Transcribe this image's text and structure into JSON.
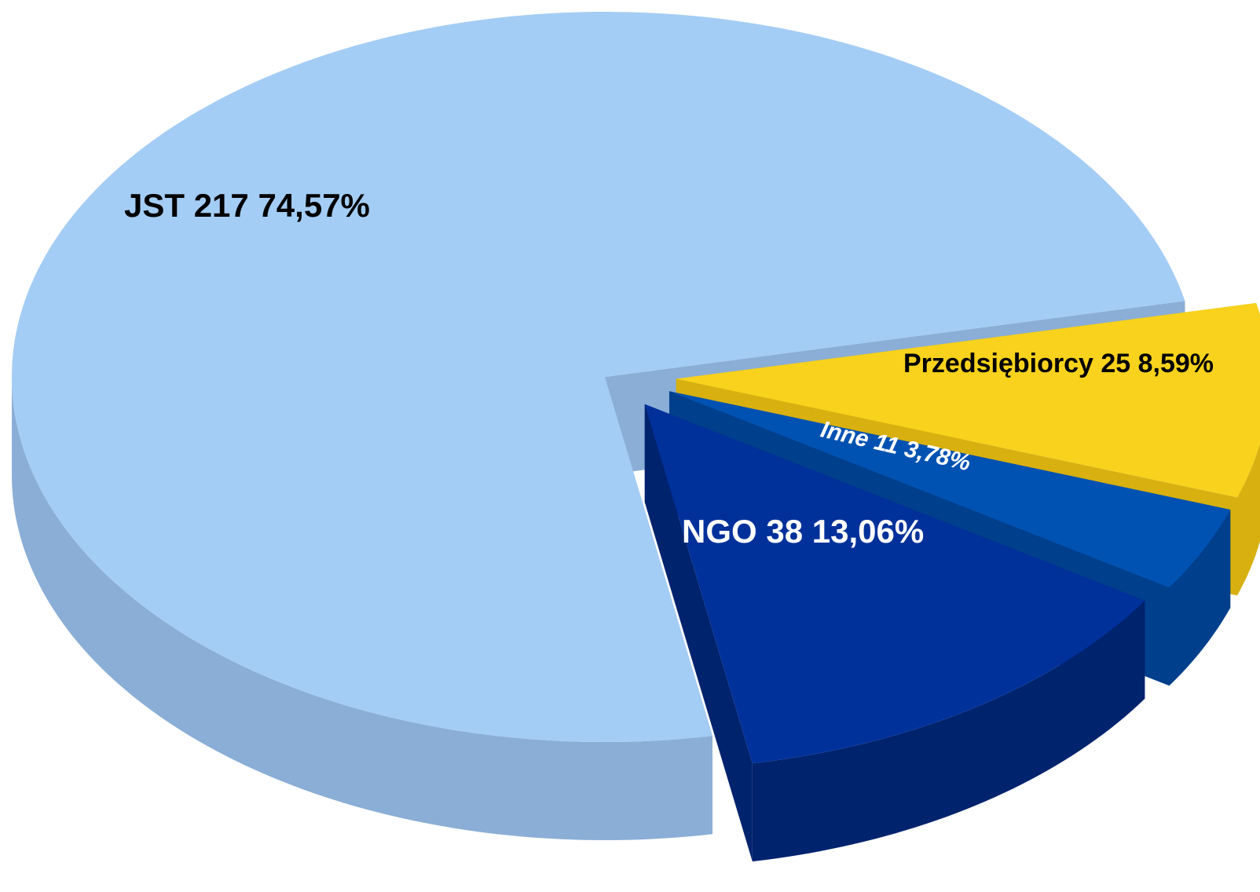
{
  "chart_data": {
    "type": "pie3d",
    "categories": [
      "Przedsiębiorcy",
      "Inne",
      "NGO",
      "JST"
    ],
    "values": [
      25,
      11,
      38,
      217
    ],
    "percentages": [
      8.59,
      3.78,
      13.06,
      74.57
    ],
    "percent_labels": [
      "8,59%",
      "3,78%",
      "13,06%",
      "74,57%"
    ],
    "colors": [
      "#f8d21c",
      "#0052b2",
      "#00319a",
      "#a4cdf5"
    ],
    "side_colors": [
      "#d8b010",
      "#003f8c",
      "#00236e",
      "#8aaed6"
    ],
    "label_colors": [
      "#000000",
      "#ffffff",
      "#ffffff",
      "#000000"
    ],
    "exploded": [
      true,
      true,
      true,
      false
    ]
  }
}
